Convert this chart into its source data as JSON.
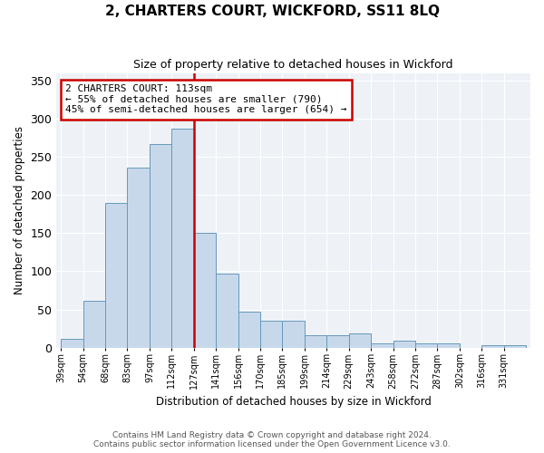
{
  "title": "2, CHARTERS COURT, WICKFORD, SS11 8LQ",
  "subtitle": "Size of property relative to detached houses in Wickford",
  "xlabel": "Distribution of detached houses by size in Wickford",
  "ylabel": "Number of detached properties",
  "footnote1": "Contains HM Land Registry data © Crown copyright and database right 2024.",
  "footnote2": "Contains public sector information licensed under the Open Government Licence v3.0.",
  "bin_labels": [
    "39sqm",
    "54sqm",
    "68sqm",
    "83sqm",
    "97sqm",
    "112sqm",
    "127sqm",
    "141sqm",
    "156sqm",
    "170sqm",
    "185sqm",
    "199sqm",
    "214sqm",
    "229sqm",
    "243sqm",
    "258sqm",
    "272sqm",
    "287sqm",
    "302sqm",
    "316sqm",
    "331sqm"
  ],
  "bar_heights": [
    12,
    61,
    190,
    236,
    267,
    287,
    150,
    97,
    47,
    35,
    35,
    16,
    16,
    18,
    5,
    9,
    5,
    5,
    0,
    3,
    3
  ],
  "bar_color": "#c8d8eb",
  "bar_edge_color": "#6699bb",
  "vline_color": "#cc0000",
  "vline_bin_index": 6,
  "annotation_title": "2 CHARTERS COURT: 113sqm",
  "annotation_line1": "← 55% of detached houses are smaller (790)",
  "annotation_line2": "45% of semi-detached houses are larger (654) →",
  "annotation_box_color": "#cc0000",
  "ylim": [
    0,
    360
  ],
  "yticks": [
    0,
    50,
    100,
    150,
    200,
    250,
    300,
    350
  ],
  "bin_width": 1.0,
  "figwidth": 6.0,
  "figheight": 5.0,
  "dpi": 100
}
